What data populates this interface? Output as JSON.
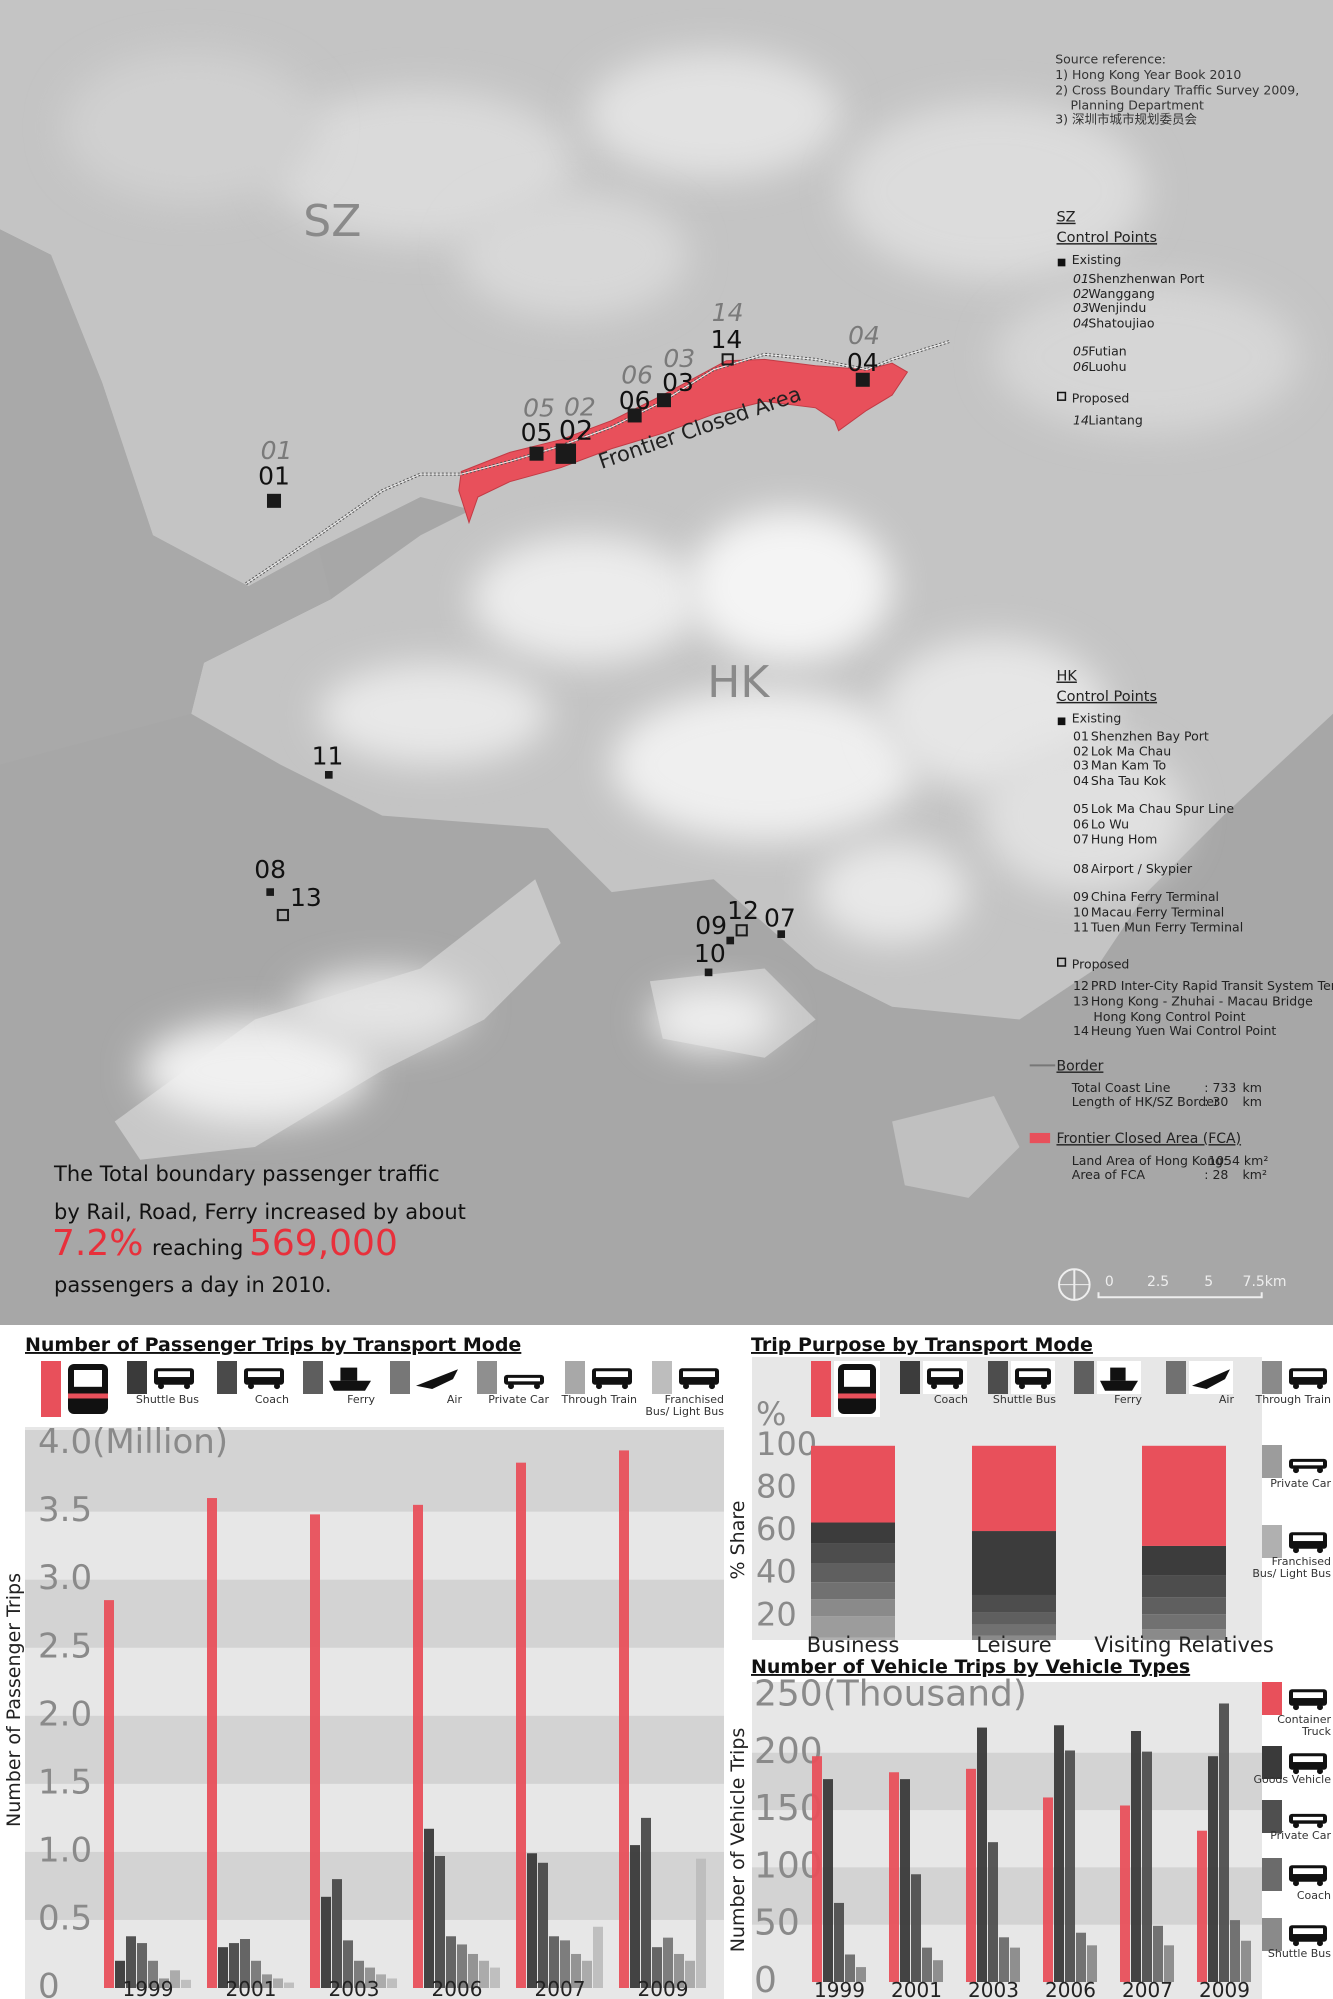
{
  "map": {
    "sz_label": "SZ",
    "hk_label": "HK",
    "fca_label": "Frontier Closed Area",
    "source": [
      "Source reference:",
      "1) Hong Kong Year Book 2010",
      "2) Cross Boundary Traffic Survey 2009,",
      "Planning Department",
      "3) 深圳市城市规划委员会"
    ],
    "sz_points": [
      "01",
      "02",
      "03",
      "04",
      "05",
      "06",
      "14"
    ],
    "hk_points": [
      "01",
      "02",
      "03",
      "04",
      "05",
      "06",
      "07",
      "08",
      "09",
      "10",
      "11",
      "12",
      "13",
      "14"
    ],
    "sz_legend": {
      "title": "SZ",
      "subtitle": "Control Points",
      "existing": "Existing",
      "items": [
        {
          "id": "01",
          "name": "Shenzhenwan Port"
        },
        {
          "id": "02",
          "name": "Wanggang"
        },
        {
          "id": "03",
          "name": "Wenjindu"
        },
        {
          "id": "04",
          "name": "Shatoujiao"
        },
        {
          "id": "05",
          "name": "Futian"
        },
        {
          "id": "06",
          "name": "Luohu"
        }
      ],
      "proposed": "Proposed",
      "proposed_items": [
        {
          "id": "14",
          "name": "Liantang"
        }
      ]
    },
    "hk_legend": {
      "title": "HK",
      "subtitle": "Control Points",
      "existing": "Existing",
      "items": [
        {
          "id": "01",
          "name": "Shenzhen Bay Port"
        },
        {
          "id": "02",
          "name": "Lok Ma Chau"
        },
        {
          "id": "03",
          "name": "Man Kam To"
        },
        {
          "id": "04",
          "name": "Sha Tau Kok"
        },
        {
          "id": "05",
          "name": "Lok Ma Chau Spur Line"
        },
        {
          "id": "06",
          "name": "Lo Wu"
        },
        {
          "id": "07",
          "name": "Hung Hom"
        },
        {
          "id": "08",
          "name": "Airport / Skypier"
        },
        {
          "id": "09",
          "name": "China Ferry Terminal"
        },
        {
          "id": "10",
          "name": "Macau Ferry Terminal"
        },
        {
          "id": "11",
          "name": "Tuen Mun Ferry Terminal"
        }
      ],
      "proposed": "Proposed",
      "proposed_items": [
        {
          "id": "12",
          "name": "PRD Inter-City Rapid Transit System Terminal"
        },
        {
          "id": "13",
          "name": "Hong Kong - Zhuhai - Macau Bridge",
          "name2": "Hong Kong Control Point"
        },
        {
          "id": "14",
          "name": "Heung Yuen Wai Control Point"
        }
      ]
    },
    "border": {
      "title": "Border",
      "rows": [
        {
          "label": "Total Coast Line",
          "value": ": 733",
          "unit": "km"
        },
        {
          "label": "Length of HK/SZ Border",
          "value": ": 30",
          "unit": "km"
        }
      ]
    },
    "fca": {
      "title": "Frontier Closed Area (FCA)",
      "rows": [
        {
          "label": "Land Area of Hong Kong:",
          "value": "1054 km²"
        },
        {
          "label": "Area of FCA",
          "value": ": 28",
          "unit": "km²"
        }
      ]
    },
    "scale": [
      "0",
      "2.5",
      "5",
      "7.5km"
    ]
  },
  "summary": {
    "line1": "The Total boundary passenger traffic",
    "line2": "by Rail, Road, Ferry increased by about",
    "growth": "7.2%",
    "reaching": "reaching",
    "volume": "569,000",
    "line4": "passengers a day in 2010."
  },
  "chart_data": [
    {
      "type": "bar",
      "title": "Number of Passenger Trips by Transport Mode",
      "y_label": "Number of Passenger Trips",
      "categories": [
        "1999",
        "2001",
        "2003",
        "2006",
        "2007",
        "2009"
      ],
      "ylim": [
        0,
        4.1
      ],
      "yticks": [
        0,
        0.5,
        {
          "value": 1,
          "label": "1.0"
        },
        1.5,
        {
          "value": 2,
          "label": "2.0"
        },
        2.5,
        {
          "value": 3,
          "label": "3.0"
        },
        3.5,
        {
          "value": 4,
          "label": "4.0(Million)"
        }
      ],
      "grid": true,
      "series": [
        {
          "color": "#e8505b",
          "values": [
            2.85,
            3.6,
            3.48,
            3.55,
            3.86,
            3.95
          ]
        },
        {
          "name": "Shuttle Bus",
          "color": "#3a3a3a",
          "values": [
            0.2,
            0.3,
            0.67,
            1.17,
            0.99,
            1.05
          ]
        },
        {
          "name": "Coach",
          "color": "#4a4a4a",
          "values": [
            0.38,
            0.33,
            0.8,
            0.97,
            0.92,
            1.25
          ]
        },
        {
          "name": "Ferry",
          "color": "#5e5e5e",
          "values": [
            0.33,
            0.36,
            0.35,
            0.38,
            0.38,
            0.3
          ]
        },
        {
          "name": "Air",
          "color": "#777777",
          "values": [
            0.2,
            0.2,
            0.2,
            0.32,
            0.35,
            0.37
          ]
        },
        {
          "name": "Private Car",
          "color": "#8f8f8f",
          "values": [
            0.07,
            0.1,
            0.15,
            0.25,
            0.25,
            0.25
          ]
        },
        {
          "name": "Through Train",
          "color": "#a8a8a8",
          "values": [
            0.13,
            0.07,
            0.1,
            0.2,
            0.2,
            0.2
          ]
        },
        {
          "name": "Franchised Bus/ Light Bus",
          "color": "#bdbdbd",
          "values": [
            0.06,
            0.04,
            0.07,
            0.15,
            0.45,
            0.95
          ]
        }
      ]
    },
    {
      "type": "stacked_bar",
      "title": "Trip Purpose by Transport Mode",
      "y_label": "% Share",
      "y_unit": "%",
      "categories": [
        "Business",
        "Leisure",
        "Visiting Relatives"
      ],
      "ylim": [
        7,
        106
      ],
      "yticks": [
        20,
        40,
        60,
        80,
        100
      ],
      "series": [
        {
          "color": "#e8505b",
          "values": [
            36,
            40,
            47
          ]
        },
        {
          "name": "Coach",
          "color": "#3c3c3c",
          "values": [
            10,
            30,
            14
          ]
        },
        {
          "name": "Shuttle Bus",
          "color": "#4d4d4d",
          "values": [
            9,
            8,
            10
          ]
        },
        {
          "name": "Ferry",
          "color": "#5f5f5f",
          "values": [
            9,
            6,
            8
          ]
        },
        {
          "name": "Air",
          "color": "#717171",
          "values": [
            8,
            5,
            7
          ]
        },
        {
          "name": "Through Train",
          "color": "#8a8a8a",
          "values": [
            8,
            4,
            5
          ]
        },
        {
          "name": "Private Car",
          "color": "#9c9c9c",
          "values": [
            10,
            4,
            5
          ]
        },
        {
          "name": "Franchised Bus/ Light Bus",
          "color": "#b0b0b0",
          "values": [
            10,
            3,
            4
          ]
        }
      ]
    },
    {
      "type": "bar",
      "title": "Number of Vehicle Trips by Vehicle Types",
      "y_label": "Number of Vehicle Trips",
      "categories": [
        "1999",
        "2001",
        "2003",
        "2006",
        "2007",
        "2009"
      ],
      "ylim": [
        0,
        260
      ],
      "yticks": [
        0,
        50,
        100,
        150,
        200,
        {
          "value": 250,
          "label": "250(Thousand)"
        }
      ],
      "grid": true,
      "series": [
        {
          "name": "Container Truck",
          "color": "#e8505b",
          "values": [
            197,
            183,
            186,
            161,
            154,
            132
          ]
        },
        {
          "name": "Goods Vehicle",
          "color": "#3a3a3a",
          "values": [
            177,
            177,
            222,
            224,
            219,
            197
          ]
        },
        {
          "name": "Private Car",
          "color": "#4f4f4f",
          "values": [
            69,
            94,
            122,
            202,
            201,
            243
          ]
        },
        {
          "name": "Coach",
          "color": "#6b6b6b",
          "values": [
            24,
            30,
            39,
            43,
            49,
            54
          ]
        },
        {
          "name": "Shuttle Bus",
          "color": "#8a8a8a",
          "values": [
            13,
            19,
            30,
            32,
            32,
            36
          ]
        }
      ]
    }
  ]
}
